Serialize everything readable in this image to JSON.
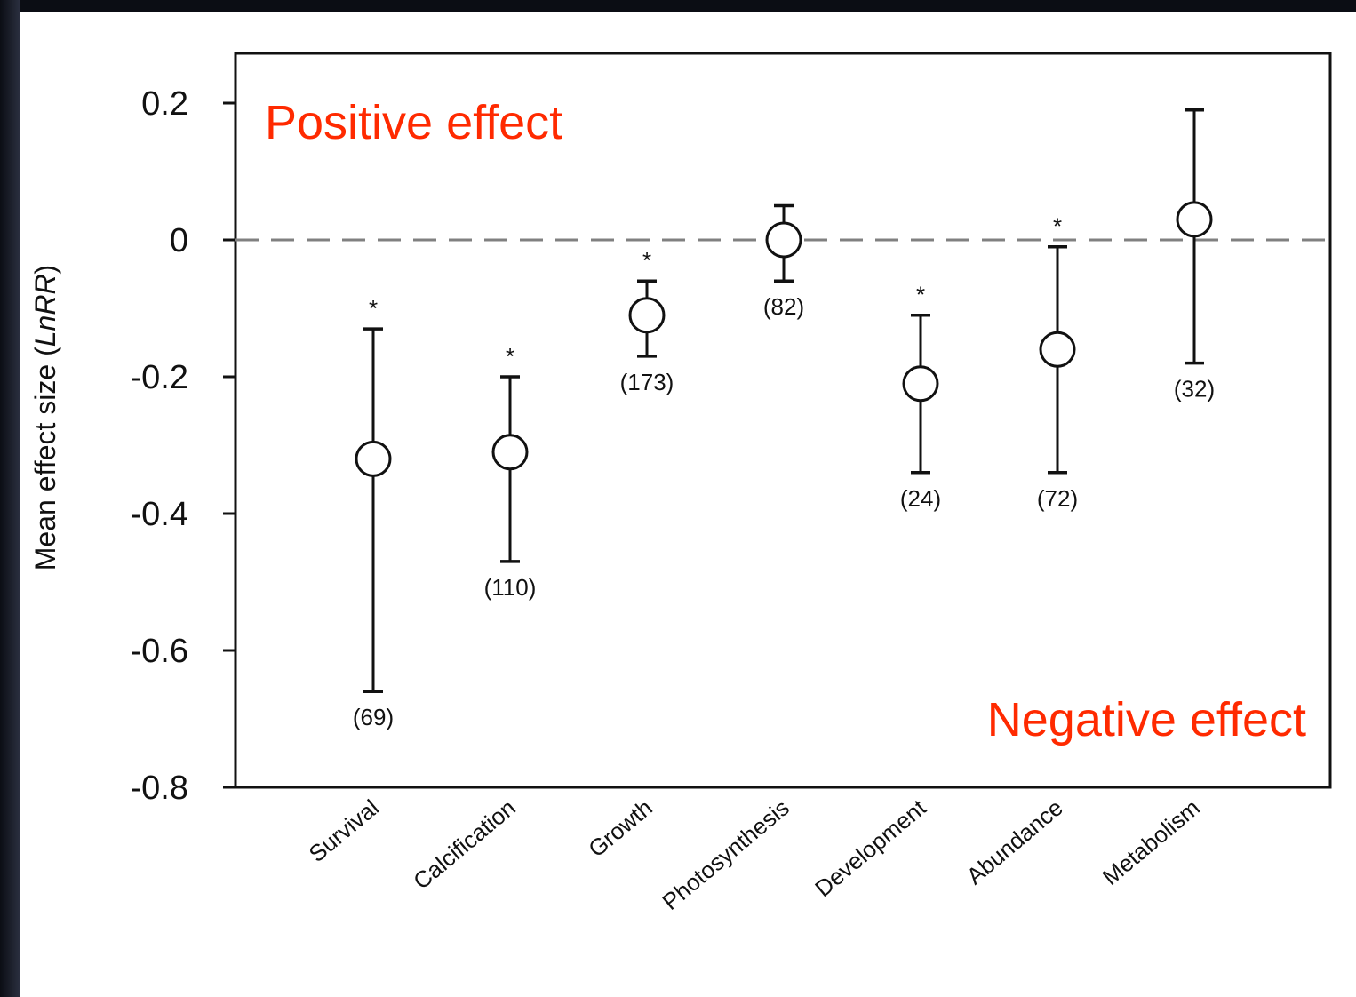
{
  "chart_data": {
    "type": "scatter",
    "title": "",
    "ylabel_prefix": "Mean effect size (",
    "ylabel_italic": "LnRR",
    "ylabel_suffix": ")",
    "xlabel": "",
    "ylim": [
      -0.8,
      0.2
    ],
    "yticks": [
      0.2,
      0,
      -0.2,
      -0.4,
      -0.6,
      -0.8
    ],
    "ytick_labels": [
      "0.2",
      "0",
      "-0.2",
      "-0.4",
      "-0.6",
      "-0.8"
    ],
    "reference_line": 0,
    "categories": [
      "Survival",
      "Calcification",
      "Growth",
      "Photosynthesis",
      "Development",
      "Abundance",
      "Metabolism"
    ],
    "points": [
      {
        "category": "Survival",
        "mean": -0.32,
        "lower": -0.66,
        "upper": -0.13,
        "n_label": "(69)",
        "significant": true
      },
      {
        "category": "Calcification",
        "mean": -0.31,
        "lower": -0.47,
        "upper": -0.2,
        "n_label": "(110)",
        "significant": true
      },
      {
        "category": "Growth",
        "mean": -0.11,
        "lower": -0.17,
        "upper": -0.06,
        "n_label": "(173)",
        "significant": true
      },
      {
        "category": "Photosynthesis",
        "mean": 0.0,
        "lower": -0.06,
        "upper": 0.05,
        "n_label": "(82)",
        "significant": false
      },
      {
        "category": "Development",
        "mean": -0.21,
        "lower": -0.34,
        "upper": -0.11,
        "n_label": "(24)",
        "significant": true
      },
      {
        "category": "Abundance",
        "mean": -0.16,
        "lower": -0.34,
        "upper": -0.01,
        "n_label": "(72)",
        "significant": true
      },
      {
        "category": "Metabolism",
        "mean": 0.03,
        "lower": -0.18,
        "upper": 0.19,
        "n_label": "(32)",
        "significant": false
      }
    ],
    "significance_marker": "*",
    "annotations": {
      "positive": "Positive effect",
      "negative": "Negative effect"
    },
    "colors": {
      "annotation": "#ff2a00",
      "reference_line": "#808080",
      "axis": "#111111",
      "marker_fill": "#ffffff"
    },
    "grid": false,
    "legend": "none"
  }
}
